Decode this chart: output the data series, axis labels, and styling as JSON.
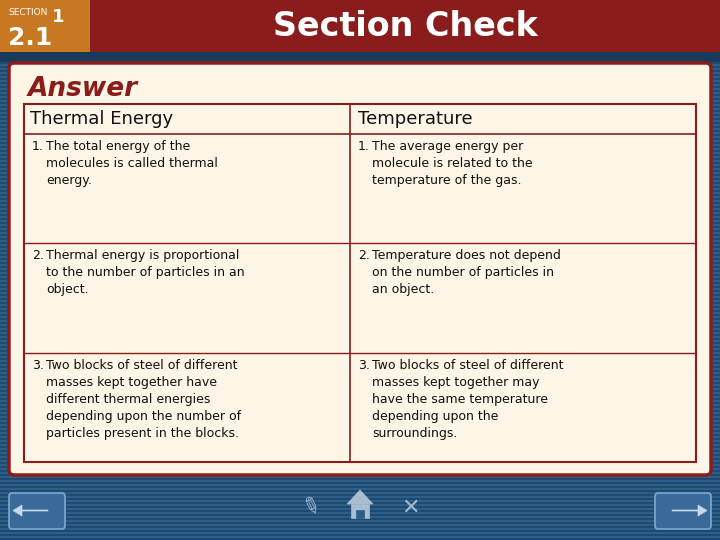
{
  "title": "Section Check",
  "section_label": "SECTION",
  "section_num": "1",
  "section_sub": "2.1",
  "answer_label": "Answer",
  "col1_header": "Thermal Energy",
  "col2_header": "Temperature",
  "col1_items": [
    "The total energy of the\nmolecules is called thermal\nenergy.",
    "Thermal energy is proportional\nto the number of particles in an\nobject.",
    "Two blocks of steel of different\nmasses kept together have\ndifferent thermal energies\ndepending upon the number of\nparticles present in the blocks."
  ],
  "col2_items": [
    "The average energy per\nmolecule is related to the\ntemperature of the gas.",
    "Temperature does not depend\non the number of particles in\nan object.",
    "Two blocks of steel of different\nmasses kept together may\nhave the same temperature\ndepending upon the\nsurroundings."
  ],
  "header_bg": "#8B1C1C",
  "header_text_color": "#FFFFFF",
  "section_badge_bg": "#C87820",
  "body_bg": "#2E5F8A",
  "card_bg": "#FDF5E6",
  "answer_text_color": "#8B1C1C",
  "col_header_text": "#111111",
  "body_text_color": "#111111",
  "border_color": "#8B1C1C",
  "stripe_color": "#1E4A70"
}
